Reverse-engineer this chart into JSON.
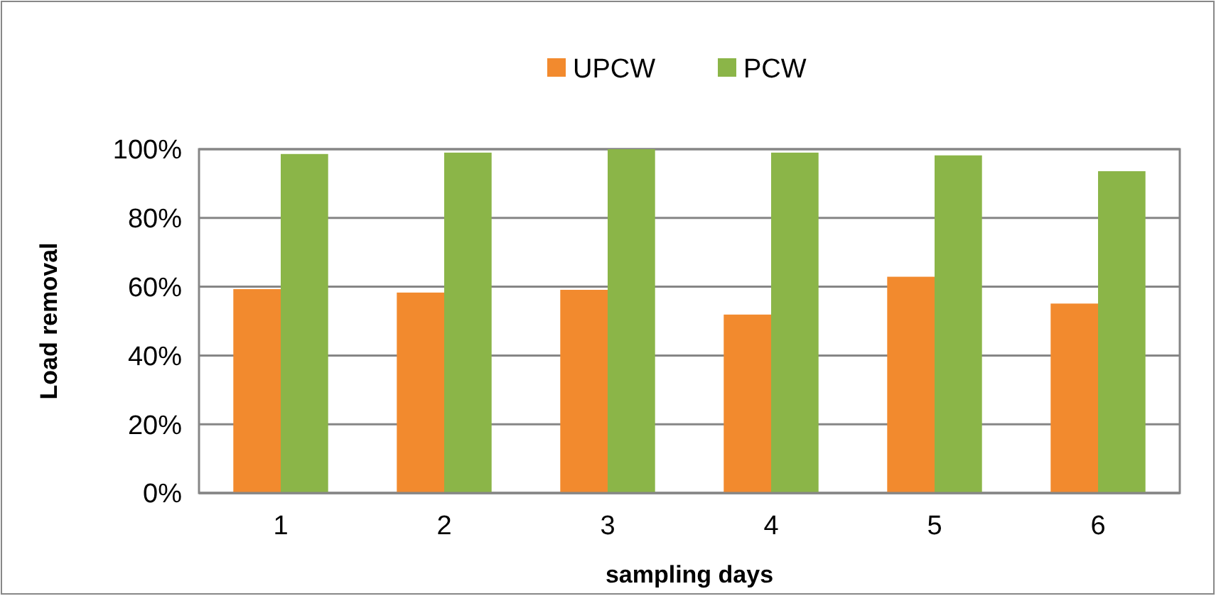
{
  "chart_data": {
    "type": "bar",
    "xlabel": "sampling days",
    "ylabel": "Load removal",
    "categories": [
      "1",
      "2",
      "3",
      "4",
      "5",
      "6"
    ],
    "series": [
      {
        "name": "UPCW",
        "color": "#f28a2e",
        "values": [
          59.3,
          58.3,
          59.1,
          51.9,
          62.9,
          55.1
        ]
      },
      {
        "name": "PCW",
        "color": "#8bb548",
        "values": [
          98.6,
          99,
          100,
          99,
          98.2,
          93.6
        ]
      }
    ],
    "ylim": [
      0,
      100
    ],
    "yticks": [
      {
        "value": 0,
        "label": "0%"
      },
      {
        "value": 20,
        "label": "20%"
      },
      {
        "value": 40,
        "label": "40%"
      },
      {
        "value": 60,
        "label": "60%"
      },
      {
        "value": 80,
        "label": "80%"
      },
      {
        "value": 100,
        "label": "100%"
      }
    ],
    "grid": "y",
    "legend": "top"
  }
}
